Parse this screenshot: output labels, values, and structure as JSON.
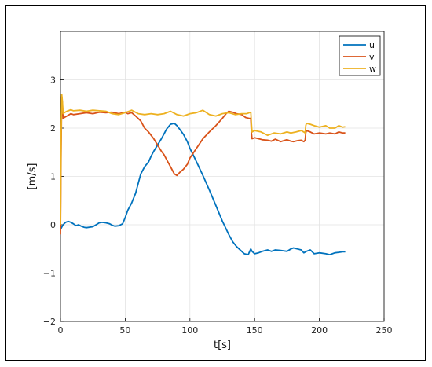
{
  "chart_data": {
    "type": "line",
    "xlabel": "t[s]",
    "ylabel": "[m/s]",
    "xlim": [
      0,
      250
    ],
    "ylim": [
      -2,
      4
    ],
    "xticks": [
      0,
      50,
      100,
      150,
      200,
      250
    ],
    "yticks": [
      -2,
      -1,
      0,
      1,
      2,
      3
    ],
    "grid": true,
    "legend_position": "top-right",
    "series": [
      {
        "name": "u",
        "color": "#0072BD",
        "x": [
          0,
          1,
          2,
          4,
          6,
          8,
          10,
          12,
          14,
          16,
          18,
          20,
          25,
          30,
          32,
          35,
          38,
          40,
          42,
          45,
          48,
          50,
          52,
          55,
          58,
          60,
          62,
          65,
          68,
          70,
          72,
          75,
          78,
          80,
          82,
          85,
          88,
          90,
          92,
          95,
          98,
          100,
          103,
          106,
          110,
          115,
          120,
          125,
          130,
          133,
          136,
          140,
          142,
          145,
          147,
          148,
          150,
          153,
          156,
          160,
          163,
          166,
          170,
          175,
          178,
          180,
          183,
          186,
          188,
          190,
          193,
          196,
          200,
          205,
          208,
          212,
          215,
          218,
          220
        ],
        "values": [
          -0.1,
          -0.05,
          0.0,
          0.05,
          0.07,
          0.05,
          0.02,
          -0.02,
          0.0,
          -0.03,
          -0.05,
          -0.06,
          -0.04,
          0.04,
          0.05,
          0.04,
          0.02,
          -0.01,
          -0.03,
          -0.02,
          0.02,
          0.15,
          0.3,
          0.45,
          0.65,
          0.85,
          1.05,
          1.2,
          1.3,
          1.42,
          1.52,
          1.65,
          1.78,
          1.88,
          1.98,
          2.08,
          2.1,
          2.05,
          1.98,
          1.87,
          1.72,
          1.58,
          1.42,
          1.25,
          1.02,
          0.72,
          0.4,
          0.08,
          -0.2,
          -0.35,
          -0.45,
          -0.55,
          -0.6,
          -0.62,
          -0.5,
          -0.55,
          -0.6,
          -0.58,
          -0.55,
          -0.52,
          -0.55,
          -0.52,
          -0.53,
          -0.55,
          -0.5,
          -0.48,
          -0.5,
          -0.52,
          -0.58,
          -0.55,
          -0.52,
          -0.6,
          -0.58,
          -0.6,
          -0.62,
          -0.58,
          -0.57,
          -0.56,
          -0.56
        ]
      },
      {
        "name": "v",
        "color": "#D95319",
        "x": [
          0,
          0.5,
          1,
          1.5,
          2,
          3,
          5,
          8,
          10,
          15,
          20,
          25,
          30,
          35,
          40,
          45,
          50,
          52,
          55,
          58,
          60,
          62,
          65,
          68,
          70,
          72,
          75,
          78,
          80,
          82,
          85,
          88,
          90,
          92,
          95,
          98,
          100,
          103,
          106,
          110,
          115,
          120,
          125,
          128,
          130,
          133,
          136,
          140,
          143,
          146,
          147,
          147.5,
          148,
          150,
          153,
          156,
          160,
          163,
          166,
          170,
          175,
          178,
          180,
          183,
          186,
          188,
          189,
          189.5,
          190,
          193,
          196,
          200,
          205,
          208,
          212,
          215,
          218,
          220
        ],
        "values": [
          -0.2,
          1.5,
          2.65,
          2.5,
          2.2,
          2.22,
          2.25,
          2.3,
          2.28,
          2.3,
          2.32,
          2.3,
          2.33,
          2.32,
          2.33,
          2.3,
          2.33,
          2.3,
          2.32,
          2.25,
          2.2,
          2.15,
          2.0,
          1.92,
          1.85,
          1.78,
          1.65,
          1.52,
          1.45,
          1.35,
          1.2,
          1.05,
          1.02,
          1.08,
          1.15,
          1.25,
          1.38,
          1.5,
          1.62,
          1.78,
          1.92,
          2.05,
          2.2,
          2.3,
          2.35,
          2.33,
          2.3,
          2.28,
          2.22,
          2.2,
          2.2,
          1.9,
          1.78,
          1.8,
          1.78,
          1.76,
          1.75,
          1.73,
          1.77,
          1.72,
          1.76,
          1.73,
          1.72,
          1.74,
          1.75,
          1.72,
          1.75,
          1.9,
          1.95,
          1.92,
          1.88,
          1.9,
          1.88,
          1.9,
          1.88,
          1.92,
          1.9,
          1.9
        ]
      },
      {
        "name": "w",
        "color": "#EDB120",
        "x": [
          0,
          0.5,
          1,
          1.5,
          2,
          3,
          5,
          8,
          10,
          15,
          20,
          25,
          30,
          35,
          40,
          45,
          50,
          55,
          60,
          65,
          70,
          75,
          80,
          85,
          90,
          95,
          100,
          105,
          110,
          115,
          120,
          125,
          130,
          135,
          140,
          144,
          146,
          147,
          147.5,
          148,
          150,
          155,
          160,
          165,
          170,
          175,
          178,
          182,
          186,
          188,
          189,
          189.5,
          190,
          193,
          196,
          200,
          205,
          208,
          212,
          215,
          218,
          220
        ],
        "values": [
          0.0,
          1.8,
          2.7,
          2.55,
          2.3,
          2.32,
          2.35,
          2.38,
          2.36,
          2.37,
          2.35,
          2.37,
          2.36,
          2.35,
          2.3,
          2.28,
          2.32,
          2.37,
          2.3,
          2.28,
          2.3,
          2.28,
          2.3,
          2.35,
          2.28,
          2.25,
          2.3,
          2.32,
          2.37,
          2.28,
          2.25,
          2.3,
          2.32,
          2.28,
          2.3,
          2.3,
          2.32,
          2.33,
          2.1,
          1.92,
          1.95,
          1.92,
          1.85,
          1.9,
          1.88,
          1.92,
          1.9,
          1.92,
          1.95,
          1.92,
          1.9,
          2.05,
          2.1,
          2.08,
          2.05,
          2.02,
          2.05,
          2.0,
          2.0,
          2.05,
          2.02,
          2.03
        ]
      }
    ]
  }
}
